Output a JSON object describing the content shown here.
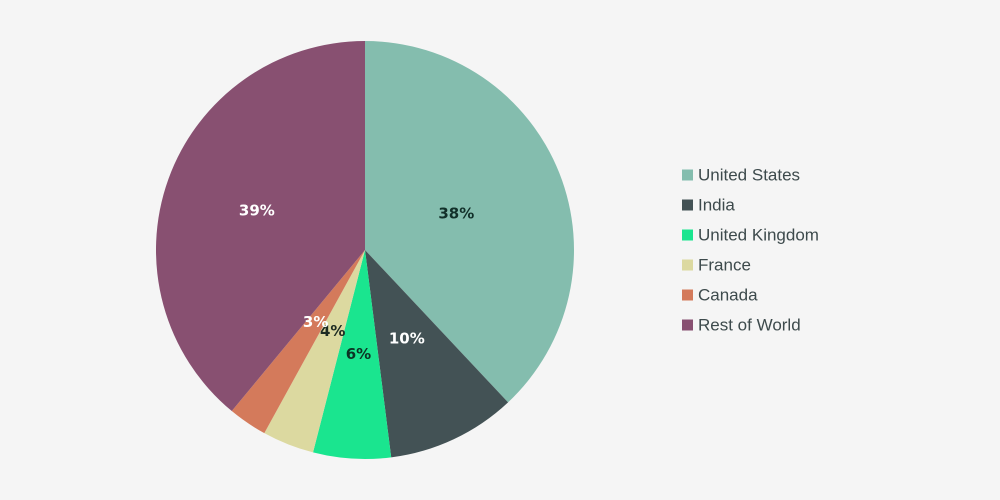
{
  "chart_data": {
    "type": "pie",
    "title": "",
    "start_angle_deg": 0,
    "direction": "clockwise",
    "legend_position": "right",
    "slices": [
      {
        "name": "United States",
        "value": 38,
        "label": "38%",
        "color": "#84bdae",
        "label_color": "#12302a"
      },
      {
        "name": "India",
        "value": 10,
        "label": "10%",
        "color": "#435255",
        "label_color": "#ffffff"
      },
      {
        "name": "United Kingdom",
        "value": 6,
        "label": "6%",
        "color": "#1ae58f",
        "label_color": "#0c3324"
      },
      {
        "name": "France",
        "value": 4,
        "label": "4%",
        "color": "#dcd9a0",
        "label_color": "#1d2b22"
      },
      {
        "name": "Canada",
        "value": 3,
        "label": "3%",
        "color": "#d47a5b",
        "label_color": "#ffffff"
      },
      {
        "name": "Rest of World",
        "value": 39,
        "label": "39%",
        "color": "#885071",
        "label_color": "#ffffff"
      }
    ]
  }
}
